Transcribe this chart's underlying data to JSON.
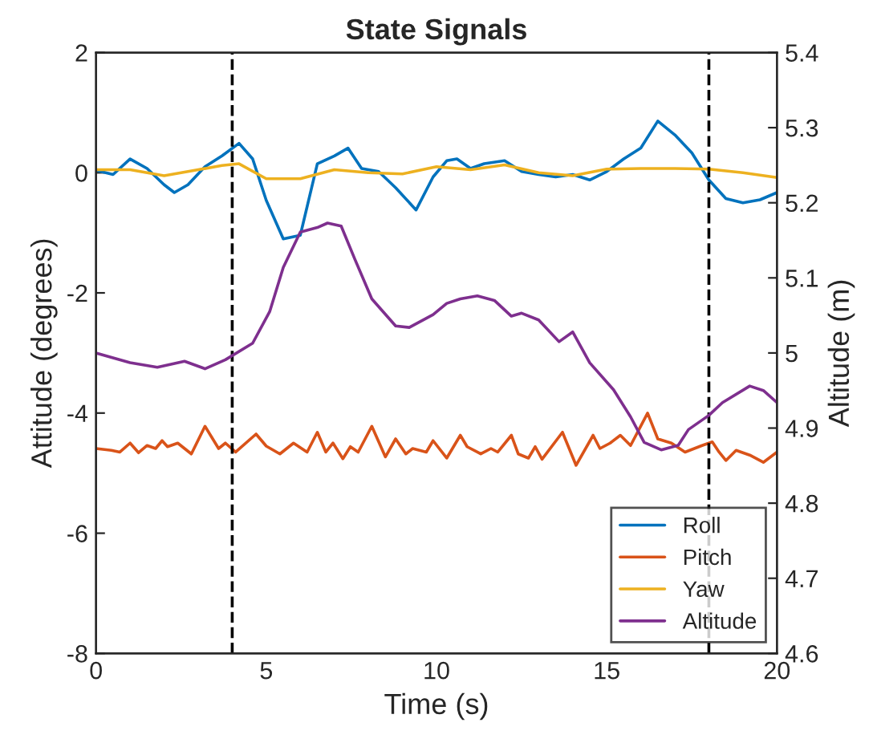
{
  "chart_data": {
    "type": "line",
    "title": "State Signals",
    "xlabel": "Time (s)",
    "ylabel": "Attitude (degrees)",
    "y2label": "Altitude (m)",
    "xlim": [
      0,
      20
    ],
    "xticks": [
      0,
      5,
      10,
      15,
      20
    ],
    "ylim": [
      -8,
      2
    ],
    "yticks": [
      -8,
      -6,
      -4,
      -2,
      0,
      2
    ],
    "y2lim": [
      4.6,
      5.4
    ],
    "y2ticks": [
      4.6,
      4.7,
      4.8,
      4.9,
      5,
      5.1,
      5.2,
      5.3,
      5.4
    ],
    "grid": false,
    "legend": "bottom right",
    "line_style": "solid",
    "marker": "none",
    "ref_lines": [
      {
        "axis": "x",
        "value": 4,
        "color": "#000000",
        "line_style": "dashed"
      },
      {
        "axis": "x",
        "value": 18,
        "color": "#000000",
        "line_style": "dashed"
      }
    ],
    "series": [
      {
        "name": "Roll",
        "color": "#0072bd",
        "x": [
          0,
          0.5,
          1,
          1.5,
          2,
          2.3,
          2.7,
          3.2,
          3.7,
          4.2,
          4.6,
          5,
          5.5,
          6,
          6.5,
          7,
          7.4,
          7.8,
          8.3,
          8.8,
          9.4,
          9.9,
          10.3,
          10.6,
          11,
          11.4,
          12,
          12.5,
          13,
          13.5,
          14,
          14.5,
          15,
          15.5,
          16,
          16.5,
          17,
          17.5,
          18,
          18.5,
          19,
          19.5,
          20
        ],
        "values": [
          0.04,
          -0.03,
          0.23,
          0.07,
          -0.2,
          -0.33,
          -0.2,
          0.1,
          0.28,
          0.49,
          0.23,
          -0.46,
          -1.1,
          -1.04,
          0.15,
          0.28,
          0.41,
          0.07,
          0.02,
          -0.25,
          -0.62,
          -0.07,
          0.2,
          0.23,
          0.07,
          0.15,
          0.2,
          0.02,
          -0.03,
          -0.07,
          -0.03,
          -0.12,
          0.02,
          0.23,
          0.41,
          0.86,
          0.63,
          0.33,
          -0.12,
          -0.43,
          -0.5,
          -0.45,
          -0.33
        ]
      },
      {
        "name": "Pitch",
        "color": "#d95319",
        "x": [
          0,
          0.45,
          0.7,
          1.0,
          1.25,
          1.5,
          1.75,
          1.94,
          2.1,
          2.4,
          2.8,
          3.2,
          3.6,
          3.8,
          4.1,
          4.7,
          5.0,
          5.4,
          5.8,
          6.2,
          6.5,
          6.75,
          6.96,
          7.25,
          7.47,
          7.7,
          8.1,
          8.5,
          8.8,
          9.1,
          9.3,
          9.7,
          9.9,
          10.3,
          10.7,
          10.9,
          11.3,
          11.6,
          11.8,
          12.2,
          12.4,
          12.7,
          12.9,
          13.1,
          13.7,
          14.1,
          14.6,
          14.8,
          15.1,
          15.4,
          15.7,
          16.2,
          16.5,
          16.9,
          17.3,
          17.8,
          18.1,
          18.3,
          18.5,
          18.8,
          19.2,
          19.6,
          20
        ],
        "values": [
          -4.59,
          -4.62,
          -4.65,
          -4.5,
          -4.66,
          -4.54,
          -4.59,
          -4.46,
          -4.56,
          -4.5,
          -4.68,
          -4.22,
          -4.59,
          -4.5,
          -4.65,
          -4.35,
          -4.55,
          -4.68,
          -4.5,
          -4.65,
          -4.32,
          -4.65,
          -4.5,
          -4.76,
          -4.56,
          -4.65,
          -4.22,
          -4.73,
          -4.43,
          -4.68,
          -4.59,
          -4.65,
          -4.46,
          -4.75,
          -4.37,
          -4.56,
          -4.68,
          -4.59,
          -4.65,
          -4.37,
          -4.68,
          -4.75,
          -4.56,
          -4.77,
          -4.32,
          -4.87,
          -4.37,
          -4.59,
          -4.5,
          -4.37,
          -4.54,
          -4.0,
          -4.43,
          -4.5,
          -4.65,
          -4.54,
          -4.48,
          -4.65,
          -4.79,
          -4.62,
          -4.7,
          -4.82,
          -4.65
        ]
      },
      {
        "name": "Yaw",
        "color": "#edb120",
        "x": [
          0,
          1,
          2,
          3,
          3.7,
          4.2,
          5,
          6,
          7,
          8,
          9,
          10,
          11,
          12,
          13,
          14,
          15,
          16,
          17,
          18,
          19,
          20
        ],
        "values": [
          0.05,
          0.05,
          -0.05,
          0.05,
          0.12,
          0.15,
          -0.1,
          -0.1,
          0.05,
          0.0,
          -0.02,
          0.1,
          0.05,
          0.13,
          0.0,
          -0.05,
          0.06,
          0.07,
          0.07,
          0.06,
          0.0,
          -0.08
        ]
      },
      {
        "name": "Altitude",
        "color": "#7e2f8e",
        "axis": "y2",
        "x": [
          0,
          1.0,
          1.8,
          2.6,
          3.2,
          3.8,
          4.6,
          5.1,
          5.5,
          6.0,
          6.5,
          6.8,
          7.2,
          7.6,
          8.1,
          8.8,
          9.2,
          9.9,
          10.3,
          10.7,
          11.2,
          11.7,
          12.2,
          12.5,
          13.0,
          13.6,
          14.0,
          14.5,
          15.2,
          15.7,
          16.1,
          16.6,
          17.1,
          17.4,
          18.0,
          18.4,
          19.2,
          19.6,
          20
        ],
        "values": [
          5.0,
          4.987,
          4.981,
          4.989,
          4.979,
          4.991,
          5.013,
          5.055,
          5.114,
          5.161,
          5.167,
          5.173,
          5.169,
          5.125,
          5.072,
          5.036,
          5.034,
          5.051,
          5.066,
          5.072,
          5.076,
          5.07,
          5.049,
          5.053,
          5.044,
          5.015,
          5.028,
          4.987,
          4.951,
          4.915,
          4.881,
          4.871,
          4.877,
          4.898,
          4.917,
          4.934,
          4.956,
          4.95,
          4.934
        ]
      }
    ]
  }
}
